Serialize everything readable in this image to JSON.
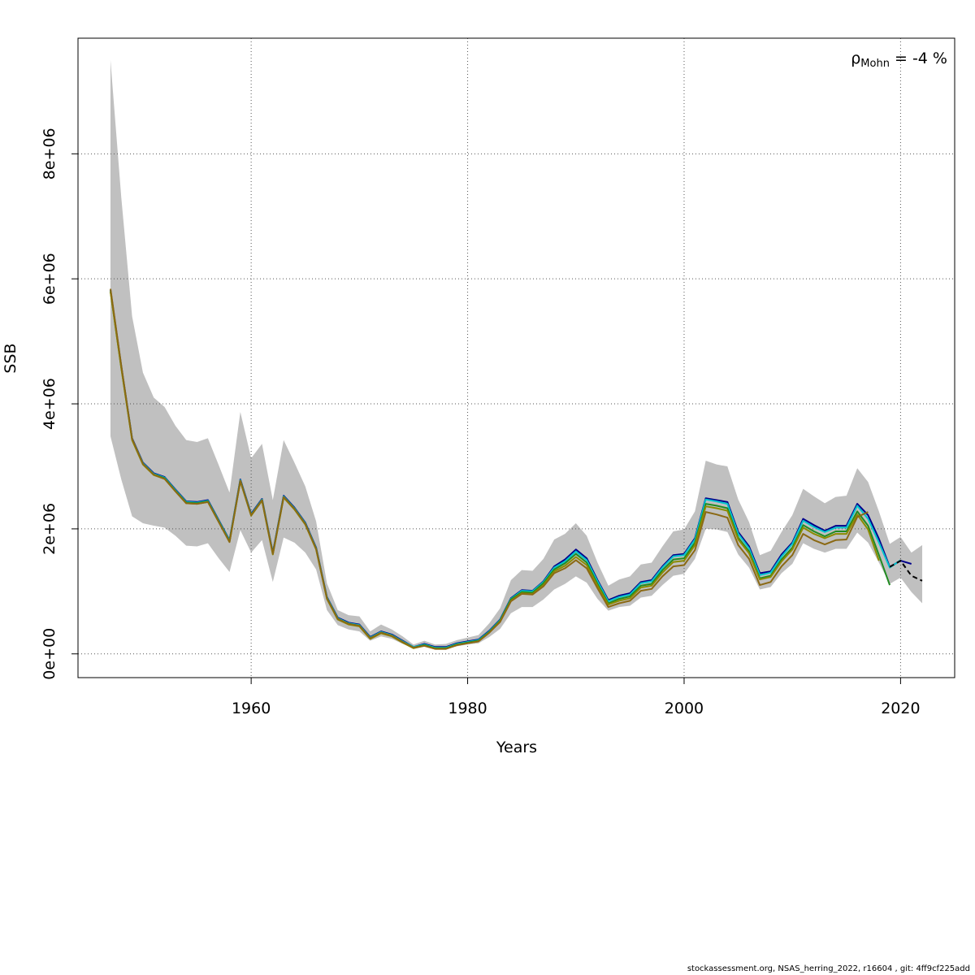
{
  "chart_data": {
    "type": "line",
    "xlabel": "Years",
    "ylabel": "SSB",
    "annotation": {
      "symbol": "ρ",
      "subscript": "Mohn",
      "text": " = -4 %"
    },
    "xlim": [
      1944,
      2025
    ],
    "ylim": [
      -380000,
      9850000
    ],
    "x_ticks": [
      1960,
      1980,
      2000,
      2020
    ],
    "x_tick_labels": [
      "1960",
      "1980",
      "2000",
      "2020"
    ],
    "y_ticks": [
      0,
      2000000,
      4000000,
      6000000,
      8000000
    ],
    "y_tick_labels": [
      "0e+00",
      "2e+06",
      "4e+06",
      "6e+06",
      "8e+06"
    ],
    "grid": true,
    "colors": {
      "band": "#c0c0c0",
      "main": "#00008b",
      "peel1": "#1e90ff",
      "peel2": "#00c5cd",
      "peel3": "#228b22",
      "peel4": "#8b8b00",
      "peel5": "#8b6914",
      "projection": "#000000"
    },
    "band": {
      "x": [
        1947,
        1948,
        1949,
        1950,
        1951,
        1952,
        1953,
        1954,
        1955,
        1956,
        1957,
        1958,
        1959,
        1960,
        1961,
        1962,
        1963,
        1964,
        1965,
        1966,
        1967,
        1968,
        1969,
        1970,
        1971,
        1972,
        1973,
        1974,
        1975,
        1976,
        1977,
        1978,
        1979,
        1980,
        1981,
        1982,
        1983,
        1984,
        1985,
        1986,
        1987,
        1988,
        1989,
        1990,
        1991,
        1992,
        1993,
        1994,
        1995,
        1996,
        1997,
        1998,
        1999,
        2000,
        2001,
        2002,
        2003,
        2004,
        2005,
        2006,
        2007,
        2008,
        2009,
        2010,
        2011,
        2012,
        2013,
        2014,
        2015,
        2016,
        2017,
        2018,
        2019,
        2020,
        2021,
        2022
      ],
      "upper": [
        9500000,
        7300000,
        5400000,
        4500000,
        4100000,
        3950000,
        3650000,
        3420000,
        3390000,
        3450000,
        3020000,
        2580000,
        3870000,
        3130000,
        3360000,
        2460000,
        3420000,
        3060000,
        2680000,
        2120000,
        1130000,
        700000,
        620000,
        600000,
        360000,
        470000,
        390000,
        280000,
        150000,
        210000,
        150000,
        160000,
        220000,
        260000,
        300000,
        490000,
        730000,
        1180000,
        1340000,
        1330000,
        1520000,
        1830000,
        1920000,
        2090000,
        1890000,
        1460000,
        1090000,
        1190000,
        1240000,
        1430000,
        1460000,
        1720000,
        1960000,
        1990000,
        2280000,
        3090000,
        3030000,
        3000000,
        2470000,
        2110000,
        1580000,
        1650000,
        1950000,
        2220000,
        2640000,
        2520000,
        2410000,
        2510000,
        2530000,
        2970000,
        2750000,
        2280000,
        1760000,
        1870000,
        1620000,
        1740000
      ],
      "lower": [
        3480000,
        2790000,
        2200000,
        2090000,
        2050000,
        2020000,
        1890000,
        1730000,
        1720000,
        1770000,
        1530000,
        1310000,
        1980000,
        1620000,
        1820000,
        1150000,
        1860000,
        1780000,
        1620000,
        1350000,
        700000,
        460000,
        390000,
        360000,
        210000,
        280000,
        240000,
        160000,
        90000,
        120000,
        80000,
        80000,
        120000,
        150000,
        170000,
        270000,
        400000,
        650000,
        750000,
        750000,
        870000,
        1030000,
        1120000,
        1240000,
        1140000,
        880000,
        690000,
        750000,
        770000,
        900000,
        930000,
        1100000,
        1250000,
        1280000,
        1520000,
        2000000,
        1990000,
        1950000,
        1590000,
        1380000,
        1030000,
        1070000,
        1290000,
        1440000,
        1770000,
        1680000,
        1620000,
        1680000,
        1680000,
        1940000,
        1780000,
        1460000,
        1120000,
        1220000,
        990000,
        810000
      ]
    },
    "series": [
      {
        "x": [
          1947,
          1948,
          1949,
          1950,
          1951,
          1952,
          1953,
          1954,
          1955,
          1956,
          1957,
          1958,
          1959,
          1960,
          1961,
          1962,
          1963,
          1964,
          1965,
          1966,
          1967,
          1968,
          1969,
          1970,
          1971,
          1972,
          1973,
          1974,
          1975,
          1976,
          1977,
          1978,
          1979,
          1980,
          1981,
          1982,
          1983,
          1984,
          1985,
          1986,
          1987,
          1988,
          1989,
          1990,
          1991,
          1992,
          1993,
          1994,
          1995,
          1996,
          1997,
          1998,
          1999,
          2000,
          2001,
          2002,
          2003,
          2004,
          2005,
          2006,
          2007,
          2008,
          2009,
          2010,
          2011,
          2012,
          2013,
          2014,
          2015,
          2016,
          2017,
          2018,
          2019,
          2020,
          2021
        ],
        "values": [
          5820000,
          4600000,
          3450000,
          3060000,
          2890000,
          2830000,
          2630000,
          2440000,
          2430000,
          2460000,
          2140000,
          1820000,
          2790000,
          2240000,
          2480000,
          1620000,
          2530000,
          2340000,
          2100000,
          1700000,
          910000,
          580000,
          500000,
          470000,
          270000,
          360000,
          310000,
          210000,
          110000,
          160000,
          110000,
          110000,
          170000,
          200000,
          230000,
          370000,
          550000,
          890000,
          1020000,
          1010000,
          1160000,
          1400000,
          1510000,
          1670000,
          1530000,
          1180000,
          860000,
          930000,
          970000,
          1150000,
          1180000,
          1400000,
          1580000,
          1600000,
          1850000,
          2490000,
          2460000,
          2430000,
          1950000,
          1720000,
          1290000,
          1320000,
          1590000,
          1780000,
          2160000,
          2060000,
          1970000,
          2050000,
          2050000,
          2400000,
          2220000,
          1840000,
          1390000,
          1490000,
          1440000
        ]
      },
      {
        "x": [
          1947,
          1948,
          1949,
          1950,
          1951,
          1952,
          1953,
          1954,
          1955,
          1956,
          1957,
          1958,
          1959,
          1960,
          1961,
          1962,
          1963,
          1964,
          1965,
          1966,
          1967,
          1968,
          1969,
          1970,
          1971,
          1972,
          1973,
          1974,
          1975,
          1976,
          1977,
          1978,
          1979,
          1980,
          1981,
          1982,
          1983,
          1984,
          1985,
          1986,
          1987,
          1988,
          1989,
          1990,
          1991,
          1992,
          1993,
          1994,
          1995,
          1996,
          1997,
          1998,
          1999,
          2000,
          2001,
          2002,
          2003,
          2004,
          2005,
          2006,
          2007,
          2008,
          2009,
          2010,
          2011,
          2012,
          2013,
          2014,
          2015,
          2016,
          2017,
          2018,
          2019,
          2020
        ],
        "values": [
          5810000,
          4590000,
          3440000,
          3050000,
          2880000,
          2820000,
          2620000,
          2430000,
          2420000,
          2450000,
          2130000,
          1810000,
          2780000,
          2230000,
          2470000,
          1610000,
          2520000,
          2330000,
          2090000,
          1690000,
          900000,
          570000,
          490000,
          460000,
          260000,
          350000,
          300000,
          200000,
          110000,
          150000,
          100000,
          100000,
          160000,
          190000,
          220000,
          360000,
          540000,
          880000,
          1010000,
          1000000,
          1150000,
          1380000,
          1480000,
          1640000,
          1500000,
          1160000,
          840000,
          910000,
          950000,
          1130000,
          1160000,
          1380000,
          1560000,
          1580000,
          1830000,
          2470000,
          2440000,
          2400000,
          1920000,
          1690000,
          1260000,
          1300000,
          1560000,
          1760000,
          2130000,
          2030000,
          1950000,
          2020000,
          2020000,
          2370000,
          2160000,
          1780000,
          1380000,
          1500000
        ]
      },
      {
        "x": [
          1947,
          1948,
          1949,
          1950,
          1951,
          1952,
          1953,
          1954,
          1955,
          1956,
          1957,
          1958,
          1959,
          1960,
          1961,
          1962,
          1963,
          1964,
          1965,
          1966,
          1967,
          1968,
          1969,
          1970,
          1971,
          1972,
          1973,
          1974,
          1975,
          1976,
          1977,
          1978,
          1979,
          1980,
          1981,
          1982,
          1983,
          1984,
          1985,
          1986,
          1987,
          1988,
          1989,
          1990,
          1991,
          1992,
          1993,
          1994,
          1995,
          1996,
          1997,
          1998,
          1999,
          2000,
          2001,
          2002,
          2003,
          2004,
          2005,
          2006,
          2007,
          2008,
          2009,
          2010,
          2011,
          2012,
          2013,
          2014,
          2015,
          2016,
          2017,
          2018,
          2019
        ],
        "values": [
          5800000,
          4580000,
          3430000,
          3040000,
          2870000,
          2810000,
          2610000,
          2420000,
          2410000,
          2440000,
          2120000,
          1800000,
          2770000,
          2220000,
          2460000,
          1600000,
          2510000,
          2320000,
          2080000,
          1680000,
          890000,
          560000,
          480000,
          450000,
          250000,
          340000,
          290000,
          190000,
          100000,
          140000,
          90000,
          90000,
          150000,
          180000,
          210000,
          350000,
          530000,
          870000,
          990000,
          980000,
          1130000,
          1350000,
          1450000,
          1600000,
          1460000,
          1120000,
          810000,
          880000,
          920000,
          1090000,
          1120000,
          1340000,
          1510000,
          1530000,
          1780000,
          2400000,
          2370000,
          2330000,
          1860000,
          1640000,
          1210000,
          1250000,
          1510000,
          1700000,
          2060000,
          1960000,
          1880000,
          1960000,
          1960000,
          2280000,
          2050000,
          1580000,
          1100000
        ]
      },
      {
        "x": [
          1947,
          1948,
          1949,
          1950,
          1951,
          1952,
          1953,
          1954,
          1955,
          1956,
          1957,
          1958,
          1959,
          1960,
          1961,
          1962,
          1963,
          1964,
          1965,
          1966,
          1967,
          1968,
          1969,
          1970,
          1971,
          1972,
          1973,
          1974,
          1975,
          1976,
          1977,
          1978,
          1979,
          1980,
          1981,
          1982,
          1983,
          1984,
          1985,
          1986,
          1987,
          1988,
          1989,
          1990,
          1991,
          1992,
          1993,
          1994,
          1995,
          1996,
          1997,
          1998,
          1999,
          2000,
          2001,
          2002,
          2003,
          2004,
          2005,
          2006,
          2007,
          2008,
          2009,
          2010,
          2011,
          2012,
          2013,
          2014,
          2015,
          2016,
          2017,
          2018
        ],
        "values": [
          5790000,
          4570000,
          3420000,
          3030000,
          2860000,
          2800000,
          2600000,
          2410000,
          2400000,
          2430000,
          2110000,
          1790000,
          2760000,
          2210000,
          2450000,
          1590000,
          2500000,
          2310000,
          2070000,
          1670000,
          880000,
          550000,
          470000,
          440000,
          240000,
          330000,
          280000,
          180000,
          90000,
          130000,
          80000,
          80000,
          140000,
          170000,
          200000,
          340000,
          520000,
          850000,
          970000,
          960000,
          1100000,
          1320000,
          1410000,
          1550000,
          1420000,
          1090000,
          790000,
          850000,
          890000,
          1060000,
          1090000,
          1300000,
          1470000,
          1490000,
          1740000,
          2360000,
          2330000,
          2290000,
          1830000,
          1610000,
          1190000,
          1230000,
          1480000,
          1670000,
          2020000,
          1920000,
          1850000,
          1920000,
          1920000,
          2230000,
          1990000,
          1490000
        ]
      },
      {
        "x": [
          1947,
          1948,
          1949,
          1950,
          1951,
          1952,
          1953,
          1954,
          1955,
          1956,
          1957,
          1958,
          1959,
          1960,
          1961,
          1962,
          1963,
          1964,
          1965,
          1966,
          1967,
          1968,
          1969,
          1970,
          1971,
          1972,
          1973,
          1974,
          1975,
          1976,
          1977,
          1978,
          1979,
          1980,
          1981,
          1982,
          1983,
          1984,
          1985,
          1986,
          1987,
          1988,
          1989,
          1990,
          1991,
          1992,
          1993,
          1994,
          1995,
          1996,
          1997,
          1998,
          1999,
          2000,
          2001,
          2002,
          2003,
          2004,
          2005,
          2006,
          2007,
          2008,
          2009,
          2010,
          2011,
          2012,
          2013,
          2014,
          2015,
          2016,
          2017
        ],
        "values": [
          5840000,
          4610000,
          3440000,
          3040000,
          2870000,
          2800000,
          2600000,
          2410000,
          2400000,
          2430000,
          2110000,
          1790000,
          2770000,
          2220000,
          2460000,
          1600000,
          2510000,
          2320000,
          2080000,
          1680000,
          890000,
          560000,
          480000,
          450000,
          250000,
          340000,
          290000,
          190000,
          100000,
          130000,
          80000,
          80000,
          140000,
          170000,
          200000,
          340000,
          510000,
          840000,
          960000,
          950000,
          1080000,
          1290000,
          1370000,
          1500000,
          1370000,
          1050000,
          750000,
          810000,
          850000,
          1010000,
          1040000,
          1240000,
          1400000,
          1420000,
          1660000,
          2270000,
          2230000,
          2180000,
          1740000,
          1520000,
          1100000,
          1150000,
          1400000,
          1580000,
          1920000,
          1820000,
          1750000,
          1820000,
          1830000,
          2190000,
          2270000
        ]
      }
    ],
    "projection": {
      "x": [
        2019,
        2020,
        2021,
        2022
      ],
      "values": [
        1390000,
        1490000,
        1250000,
        1170000
      ]
    }
  },
  "footer_text": "stockassessment.org, NSAS_herring_2022, r16604 , git: 4ff9cf225add"
}
